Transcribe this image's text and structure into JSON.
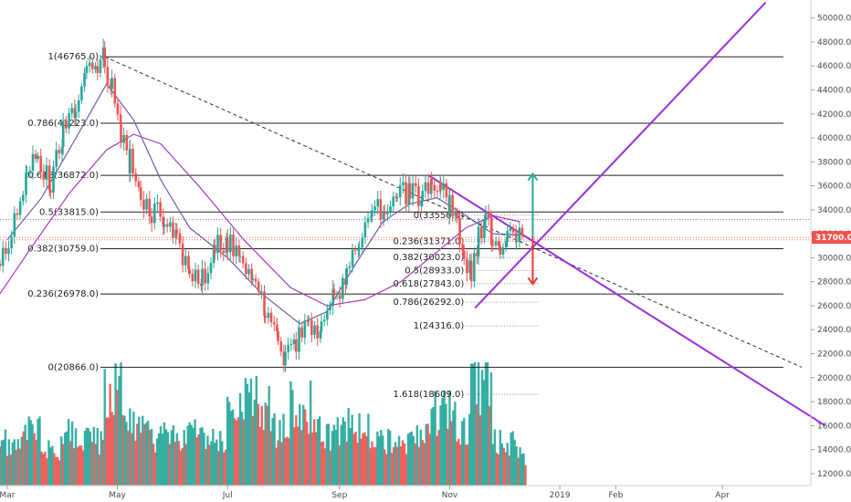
{
  "chart_data": {
    "type": "candlestick",
    "title": "",
    "xlabel": "",
    "ylabel": "",
    "ylim": [
      11000,
      51500
    ],
    "yticks": [
      12000,
      14000,
      16000,
      18000,
      20000,
      22000,
      24000,
      26000,
      28000,
      30000,
      32000,
      34000,
      36000,
      38000,
      40000,
      42000,
      44000,
      46000,
      48000,
      50000
    ],
    "ytick_labels": [
      "12000.0",
      "14000.0",
      "16000.0",
      "18000.0",
      "20000.0",
      "22000.0",
      "24000.0",
      "26000.0",
      "28000.0",
      "30000.0",
      "32000.0",
      "34000.0",
      "36000.0",
      "38000.0",
      "40000.0",
      "42000.0",
      "44000.0",
      "46000.0",
      "48000.0",
      "50000.0"
    ],
    "x_range": [
      "2018-02-25",
      "2019-05-20"
    ],
    "xticks": [
      {
        "label": "Mar",
        "date": "2018-03-01"
      },
      {
        "label": "May",
        "date": "2018-05-01"
      },
      {
        "label": "Jul",
        "date": "2018-07-01"
      },
      {
        "label": "Sep",
        "date": "2018-09-01"
      },
      {
        "label": "Nov",
        "date": "2018-11-01"
      },
      {
        "label": "2019",
        "date": "2019-01-01"
      },
      {
        "label": "Feb",
        "date": "2019-02-01"
      },
      {
        "label": "Apr",
        "date": "2019-04-01"
      }
    ],
    "last_price": 31700.0,
    "last_price_label": "31700.0",
    "price_points": [
      {
        "date": "2018-02-25",
        "close": 29500
      },
      {
        "date": "2018-03-05",
        "close": 33000
      },
      {
        "date": "2018-03-12",
        "close": 36500
      },
      {
        "date": "2018-03-18",
        "close": 38500
      },
      {
        "date": "2018-03-25",
        "close": 36000
      },
      {
        "date": "2018-04-01",
        "close": 40500
      },
      {
        "date": "2018-04-08",
        "close": 43000
      },
      {
        "date": "2018-04-14",
        "close": 45500
      },
      {
        "date": "2018-04-20",
        "close": 46200
      },
      {
        "date": "2018-04-24",
        "close": 46500
      },
      {
        "date": "2018-04-28",
        "close": 44000
      },
      {
        "date": "2018-05-03",
        "close": 40000
      },
      {
        "date": "2018-05-08",
        "close": 38000
      },
      {
        "date": "2018-05-14",
        "close": 35500
      },
      {
        "date": "2018-05-20",
        "close": 34000
      },
      {
        "date": "2018-05-27",
        "close": 33500
      },
      {
        "date": "2018-06-03",
        "close": 31500
      },
      {
        "date": "2018-06-10",
        "close": 28500
      },
      {
        "date": "2018-06-17",
        "close": 28000
      },
      {
        "date": "2018-06-24",
        "close": 31000
      },
      {
        "date": "2018-07-01",
        "close": 31500
      },
      {
        "date": "2018-07-08",
        "close": 29500
      },
      {
        "date": "2018-07-15",
        "close": 28500
      },
      {
        "date": "2018-07-22",
        "close": 25500
      },
      {
        "date": "2018-07-29",
        "close": 23000
      },
      {
        "date": "2018-08-02",
        "close": 21500
      },
      {
        "date": "2018-08-08",
        "close": 23000
      },
      {
        "date": "2018-08-15",
        "close": 24500
      },
      {
        "date": "2018-08-22",
        "close": 24000
      },
      {
        "date": "2018-08-29",
        "close": 26500
      },
      {
        "date": "2018-09-05",
        "close": 29000
      },
      {
        "date": "2018-09-12",
        "close": 31500
      },
      {
        "date": "2018-09-19",
        "close": 33500
      },
      {
        "date": "2018-09-26",
        "close": 34500
      },
      {
        "date": "2018-10-03",
        "close": 35000
      },
      {
        "date": "2018-10-10",
        "close": 35500
      },
      {
        "date": "2018-10-17",
        "close": 35000
      },
      {
        "date": "2018-10-22",
        "close": 36800
      },
      {
        "date": "2018-10-27",
        "close": 35500
      },
      {
        "date": "2018-11-01",
        "close": 34500
      },
      {
        "date": "2018-11-05",
        "close": 33000
      },
      {
        "date": "2018-11-09",
        "close": 30500
      },
      {
        "date": "2018-11-13",
        "close": 28800
      },
      {
        "date": "2018-11-17",
        "close": 31500
      },
      {
        "date": "2018-11-21",
        "close": 33000
      },
      {
        "date": "2018-11-25",
        "close": 31500
      },
      {
        "date": "2018-11-29",
        "close": 30500
      },
      {
        "date": "2018-12-03",
        "close": 31800
      },
      {
        "date": "2018-12-08",
        "close": 32200
      },
      {
        "date": "2018-12-12",
        "close": 31700
      }
    ],
    "volume_points": [
      {
        "date": "2018-03-01",
        "volume": 40
      },
      {
        "date": "2018-03-10",
        "volume": 55
      },
      {
        "date": "2018-03-20",
        "volume": 35
      },
      {
        "date": "2018-04-01",
        "volume": 50
      },
      {
        "date": "2018-04-15",
        "volume": 45
      },
      {
        "date": "2018-04-24",
        "volume": 100
      },
      {
        "date": "2018-05-05",
        "volume": 60
      },
      {
        "date": "2018-05-20",
        "volume": 45
      },
      {
        "date": "2018-06-05",
        "volume": 50
      },
      {
        "date": "2018-06-20",
        "volume": 40
      },
      {
        "date": "2018-07-01",
        "volume": 70
      },
      {
        "date": "2018-07-10",
        "volume": 80
      },
      {
        "date": "2018-07-25",
        "volume": 55
      },
      {
        "date": "2018-08-05",
        "volume": 75
      },
      {
        "date": "2018-08-20",
        "volume": 50
      },
      {
        "date": "2018-09-05",
        "volume": 55
      },
      {
        "date": "2018-09-20",
        "volume": 40
      },
      {
        "date": "2018-10-05",
        "volume": 45
      },
      {
        "date": "2018-10-20",
        "volume": 70
      },
      {
        "date": "2018-11-05",
        "volume": 55
      },
      {
        "date": "2018-11-13",
        "volume": 100
      },
      {
        "date": "2018-11-25",
        "volume": 40
      },
      {
        "date": "2018-12-08",
        "volume": 30
      }
    ],
    "ma_fast": [
      {
        "date": "2018-03-01",
        "value": 31500
      },
      {
        "date": "2018-03-20",
        "value": 35000
      },
      {
        "date": "2018-04-10",
        "value": 40500
      },
      {
        "date": "2018-04-25",
        "value": 44500
      },
      {
        "date": "2018-05-10",
        "value": 41500
      },
      {
        "date": "2018-05-25",
        "value": 36500
      },
      {
        "date": "2018-06-10",
        "value": 32500
      },
      {
        "date": "2018-07-01",
        "value": 30000
      },
      {
        "date": "2018-07-20",
        "value": 27000
      },
      {
        "date": "2018-08-10",
        "value": 24500
      },
      {
        "date": "2018-08-25",
        "value": 25500
      },
      {
        "date": "2018-09-10",
        "value": 29500
      },
      {
        "date": "2018-09-25",
        "value": 33000
      },
      {
        "date": "2018-10-10",
        "value": 34500
      },
      {
        "date": "2018-10-25",
        "value": 35000
      },
      {
        "date": "2018-11-10",
        "value": 33500
      },
      {
        "date": "2018-11-25",
        "value": 32000
      },
      {
        "date": "2018-12-10",
        "value": 31900
      }
    ],
    "ma_slow": [
      {
        "date": "2018-02-25",
        "value": 27000
      },
      {
        "date": "2018-03-15",
        "value": 31000
      },
      {
        "date": "2018-04-05",
        "value": 35500
      },
      {
        "date": "2018-04-25",
        "value": 39000
      },
      {
        "date": "2018-05-10",
        "value": 40300
      },
      {
        "date": "2018-05-25",
        "value": 39500
      },
      {
        "date": "2018-06-15",
        "value": 36000
      },
      {
        "date": "2018-07-10",
        "value": 31500
      },
      {
        "date": "2018-08-05",
        "value": 27500
      },
      {
        "date": "2018-08-25",
        "value": 26000
      },
      {
        "date": "2018-09-15",
        "value": 26500
      },
      {
        "date": "2018-10-05",
        "value": 28000
      },
      {
        "date": "2018-10-25",
        "value": 30500
      },
      {
        "date": "2018-11-10",
        "value": 32500
      },
      {
        "date": "2018-11-25",
        "value": 33500
      },
      {
        "date": "2018-12-10",
        "value": 33000
      }
    ],
    "fib_retracement_1": {
      "levels": [
        {
          "label": "1(46765.0)",
          "value": 46765.0
        },
        {
          "label": "0.786(41223.0)",
          "value": 41223.0
        },
        {
          "label": "0.618(36872.0)",
          "value": 36872.0
        },
        {
          "label": "0.5(33815.0)",
          "value": 33815.0
        },
        {
          "label": "0.382(30759.0)",
          "value": 30759.0
        },
        {
          "label": "0.236(26978.0)",
          "value": 26978.0
        },
        {
          "label": "0(20866.0)",
          "value": 20866.0
        }
      ],
      "x_start": "2018-02-25",
      "x_end": "2019-05-20"
    },
    "fib_retracement_2": {
      "levels": [
        {
          "label": "0(33550.0)",
          "value": 33550.0
        },
        {
          "label": "0.236(31371.0)",
          "value": 31371.0
        },
        {
          "label": "0.382(30023.0)",
          "value": 30023.0
        },
        {
          "label": "0.5(28933.0)",
          "value": 28933.0
        },
        {
          "label": "0.618(27843.0)",
          "value": 27843.0
        },
        {
          "label": "0.786(26292.0)",
          "value": 26292.0
        },
        {
          "label": "1(24316.0)",
          "value": 24316.0
        },
        {
          "label": "1.618(18609.0)",
          "value": 18609.0
        }
      ],
      "x_start": "2018-11-10",
      "x_end": "2018-12-20"
    },
    "trendlines": [
      {
        "kind": "dashed",
        "from": {
          "date": "2018-04-24",
          "value": 46765
        },
        "to": {
          "date": "2019-05-15",
          "value": 20866
        }
      },
      {
        "kind": "channel-upper",
        "from": {
          "date": "2018-10-20",
          "value": 36900
        },
        "to": {
          "date": "2019-05-28",
          "value": 16000
        }
      },
      {
        "kind": "channel-lower",
        "from": {
          "date": "2018-11-15",
          "value": 25800
        },
        "to": {
          "date": "2019-04-25",
          "value": 51300
        }
      }
    ],
    "arrows": [
      {
        "color": "teal",
        "from": {
          "date": "2018-12-17",
          "value": 31700
        },
        "to": {
          "date": "2018-12-17",
          "value": 37000
        }
      },
      {
        "color": "red",
        "from": {
          "date": "2018-12-17",
          "value": 31700
        },
        "to": {
          "date": "2018-12-17",
          "value": 27800
        }
      }
    ],
    "reference_lines": [
      {
        "value": 33200,
        "style": "dotted-purple"
      },
      {
        "value": 31700,
        "style": "dotted-red"
      },
      {
        "value": 31500,
        "style": "dotted-red"
      }
    ]
  },
  "colors": {
    "up": "#26a69a",
    "down": "#ef5350",
    "ma_fast": "#6f5aa6",
    "ma_slow": "#a33bb8",
    "channel": "#9b30d9",
    "fib_line": "#222222",
    "dashed_trend": "#333333",
    "arrow_up": "#26a69a",
    "arrow_down": "#e53935",
    "price_tag": "#ef5350"
  }
}
